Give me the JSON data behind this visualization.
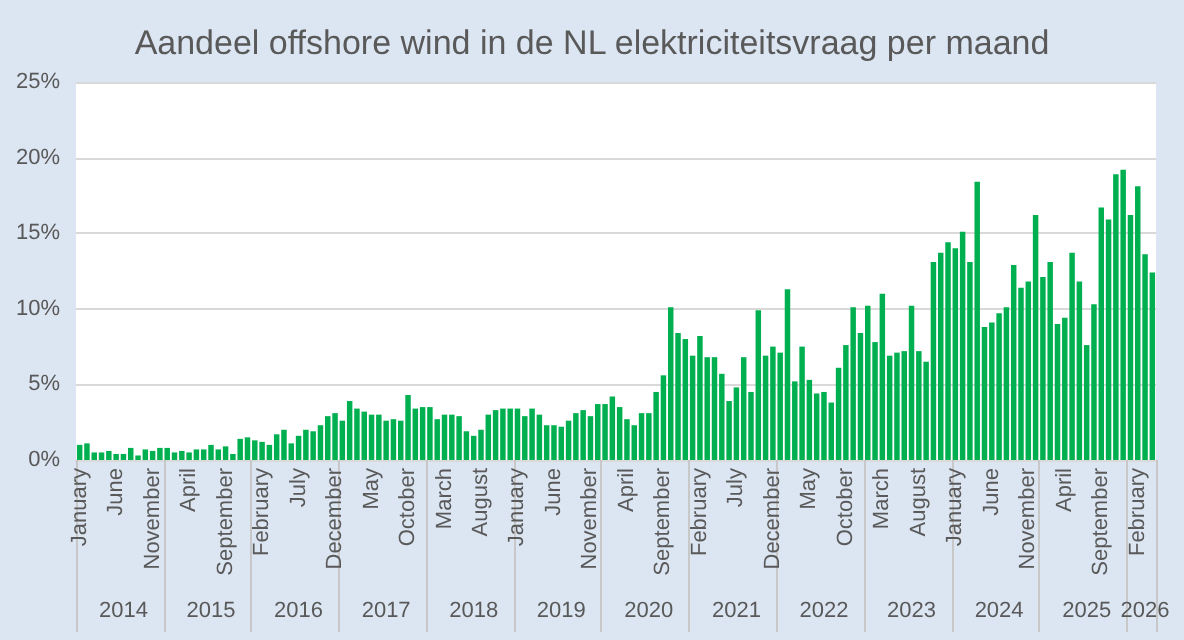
{
  "chart_data": {
    "type": "bar",
    "title": "Aandeel offshore wind in de NL elektriciteitsvraag per maand",
    "categories": [
      "January",
      null,
      null,
      null,
      null,
      "June",
      null,
      null,
      null,
      null,
      "November",
      null,
      null,
      null,
      null,
      "April",
      null,
      null,
      null,
      null,
      "September",
      null,
      null,
      null,
      null,
      "February",
      null,
      null,
      null,
      null,
      "July",
      null,
      null,
      null,
      null,
      "December",
      null,
      null,
      null,
      null,
      "May",
      null,
      null,
      null,
      null,
      "October",
      null,
      null,
      null,
      null,
      "March",
      null,
      null,
      null,
      null,
      "August",
      null,
      null,
      null,
      null,
      "January",
      null,
      null,
      null,
      null,
      "June",
      null,
      null,
      null,
      null,
      "November",
      null,
      null,
      null,
      null,
      "April",
      null,
      null,
      null,
      null,
      "September",
      null,
      null,
      null,
      null,
      "February",
      null,
      null,
      null,
      null,
      "July",
      null,
      null,
      null,
      null,
      "December",
      null,
      null,
      null,
      null,
      "May",
      null,
      null,
      null,
      null,
      "October",
      null,
      null,
      null,
      null,
      "March",
      null,
      null,
      null,
      null,
      "August",
      null,
      null,
      null,
      null,
      "January",
      null,
      null,
      null,
      null,
      "June",
      null,
      null,
      null,
      null,
      "November",
      null,
      null,
      null,
      null,
      "April",
      null,
      null,
      null,
      null,
      "September",
      null,
      null,
      null,
      null,
      "February",
      null,
      null
    ],
    "values": [
      1.0,
      1.1,
      0.5,
      0.5,
      0.6,
      0.4,
      0.4,
      0.8,
      0.3,
      0.7,
      0.6,
      0.8,
      0.8,
      0.5,
      0.6,
      0.5,
      0.7,
      0.7,
      1.0,
      0.7,
      0.9,
      0.4,
      1.4,
      1.5,
      1.3,
      1.2,
      1.0,
      1.7,
      2.0,
      1.1,
      1.6,
      2.0,
      1.9,
      2.3,
      2.9,
      3.1,
      2.6,
      3.9,
      3.4,
      3.2,
      3.0,
      3.0,
      2.6,
      2.7,
      2.6,
      4.3,
      3.4,
      3.5,
      3.5,
      2.7,
      3.0,
      3.0,
      2.9,
      1.9,
      1.6,
      2.0,
      3.0,
      3.3,
      3.4,
      3.4,
      3.4,
      2.9,
      3.4,
      3.0,
      2.3,
      2.3,
      2.2,
      2.6,
      3.1,
      3.3,
      2.9,
      3.7,
      3.7,
      4.2,
      3.5,
      2.7,
      2.3,
      3.1,
      3.1,
      4.5,
      5.6,
      10.1,
      8.4,
      8.0,
      6.9,
      8.2,
      6.8,
      6.8,
      5.7,
      3.9,
      4.8,
      6.8,
      4.5,
      9.9,
      6.9,
      7.5,
      7.1,
      11.3,
      5.2,
      7.5,
      5.3,
      4.4,
      4.5,
      3.8,
      6.1,
      7.6,
      10.1,
      8.4,
      10.2,
      7.8,
      11.0,
      6.9,
      7.1,
      7.2,
      10.2,
      7.2,
      6.5,
      13.1,
      13.7,
      14.4,
      14.0,
      15.1,
      13.1,
      18.4,
      8.8,
      9.1,
      9.7,
      10.1,
      12.9,
      11.4,
      11.8,
      16.2,
      12.1,
      13.1,
      9.0,
      9.4,
      13.7,
      11.8,
      7.6,
      10.3,
      16.7,
      15.9,
      18.9,
      19.2,
      16.2,
      18.1,
      13.6,
      12.4
    ],
    "color": "#00b050",
    "ylim": [
      0,
      25
    ],
    "yticks": [
      {
        "value": 0,
        "label": "0%"
      },
      {
        "value": 5,
        "label": "5%"
      },
      {
        "value": 10,
        "label": "10%"
      },
      {
        "value": 15,
        "label": "15%"
      },
      {
        "value": 20,
        "label": "20%"
      },
      {
        "value": 25,
        "label": "25%"
      }
    ],
    "grid": "y",
    "annotations": [
      "2014",
      "2015",
      "2016",
      "2017",
      "2018",
      "2019",
      "2020",
      "2021",
      "2022",
      "2023",
      "2024",
      "2025",
      "2026"
    ]
  }
}
